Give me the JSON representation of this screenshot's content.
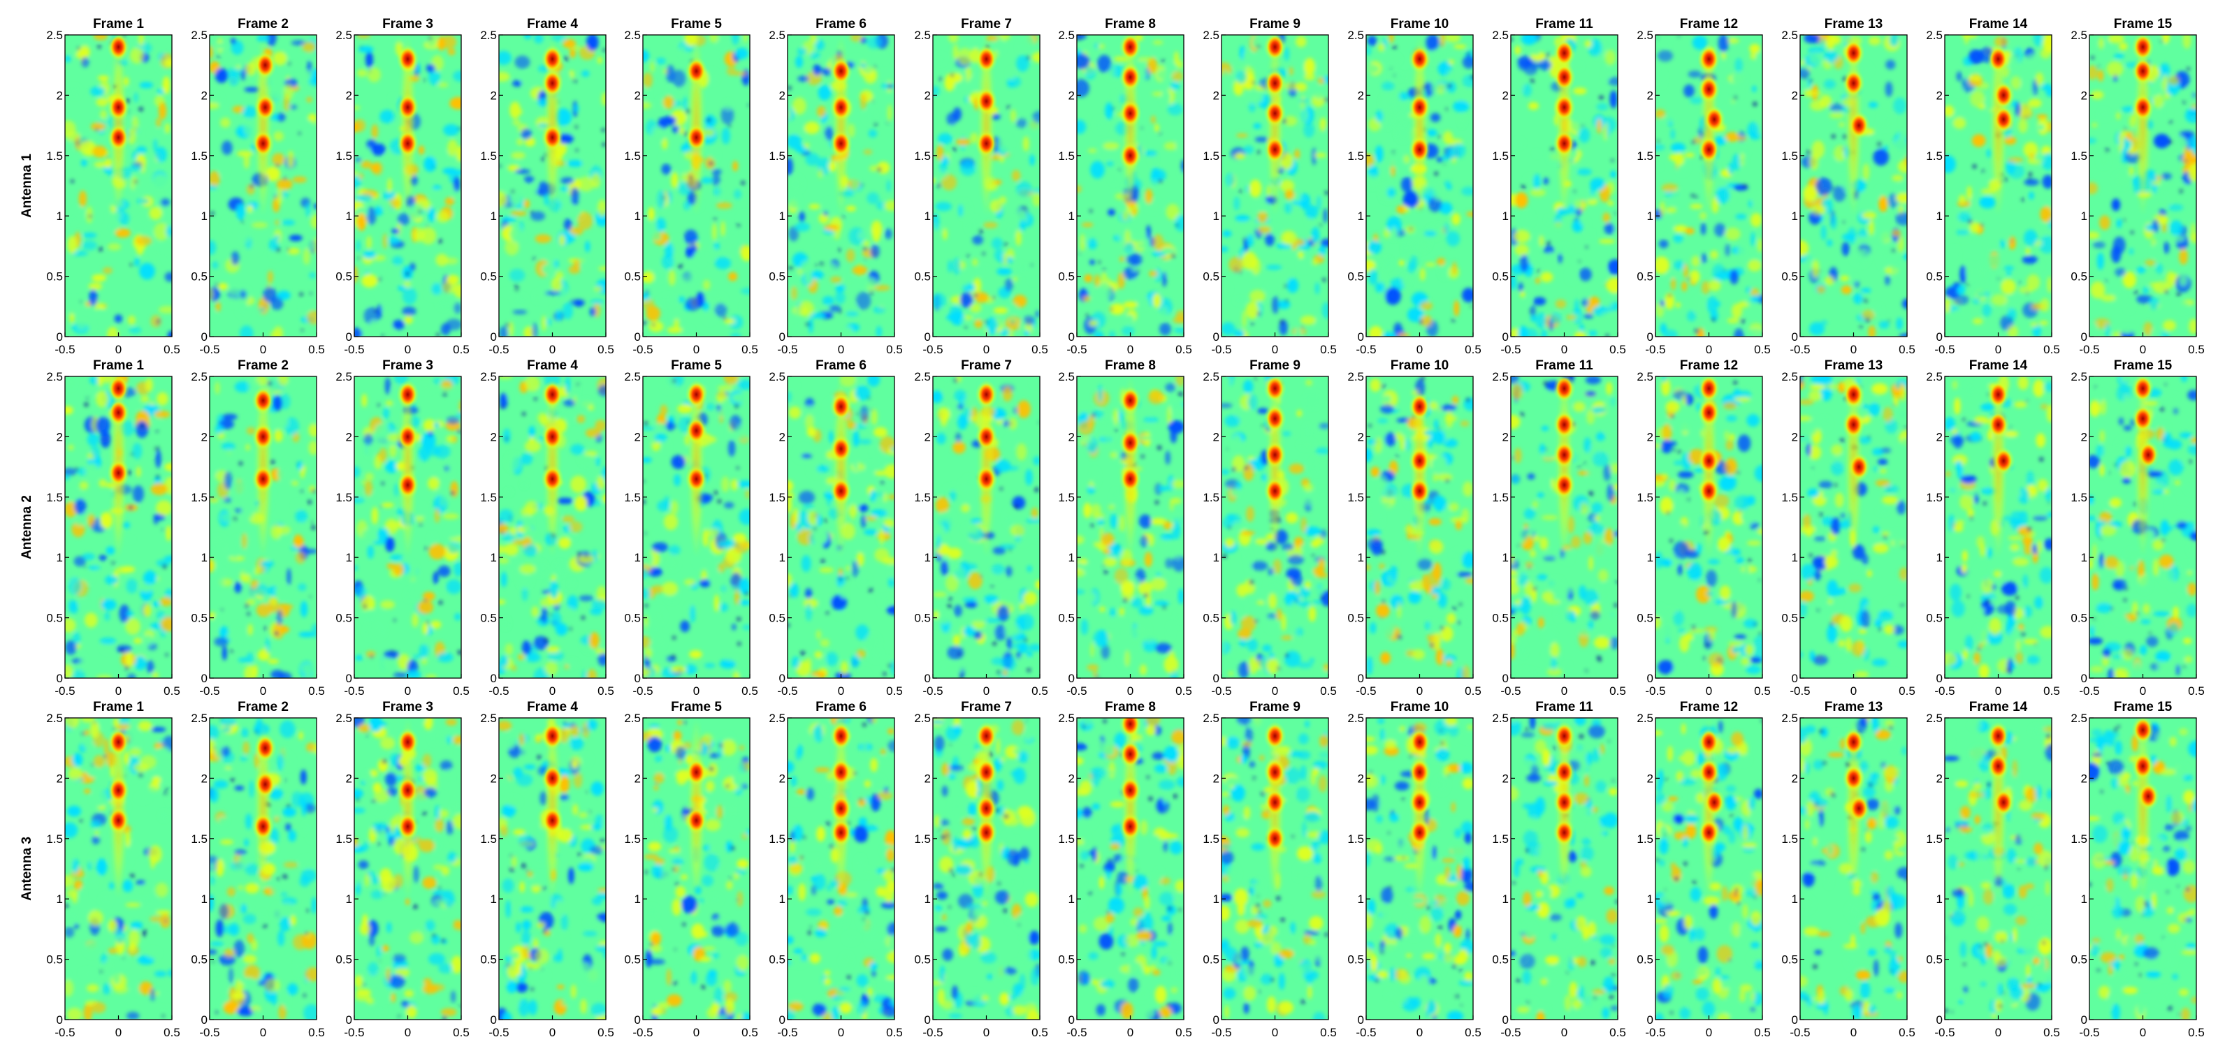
{
  "chart_data": {
    "type": "heatmap",
    "layout": "small-multiples grid, 3 rows x 15 columns",
    "colormap": "jet",
    "colormap_stops": [
      "#00008f",
      "#0050ff",
      "#00dfff",
      "#60ff9f",
      "#dfff20",
      "#ffc000",
      "#ff4000",
      "#9f0000"
    ],
    "background_level": "noisy cyan/green/yellow speckle",
    "frames": [
      "Frame 1",
      "Frame 2",
      "Frame 3",
      "Frame 4",
      "Frame 5",
      "Frame 6",
      "Frame 7",
      "Frame 8",
      "Frame 9",
      "Frame 10",
      "Frame 11",
      "Frame 12",
      "Frame 13",
      "Frame 14",
      "Frame 15"
    ],
    "antennas": [
      "Antenna 1",
      "Antenna 2",
      "Antenna 3"
    ],
    "x_ticks": [
      "-0.5",
      "0",
      "0.5"
    ],
    "y_ticks": [
      "0",
      "0.5",
      "1",
      "1.5",
      "2",
      "2.5"
    ],
    "xlim": [
      -0.5,
      0.5
    ],
    "ylim": [
      0,
      2.5
    ],
    "grid": false,
    "legend": false,
    "panels": [
      [
        {
          "frame": 1,
          "hot_spots": [
            {
              "x": 0,
              "y": 1.65
            },
            {
              "x": 0,
              "y": 1.9
            },
            {
              "x": 0,
              "y": 2.4
            }
          ]
        },
        {
          "frame": 2,
          "hot_spots": [
            {
              "x": 0,
              "y": 1.6
            },
            {
              "x": 0.02,
              "y": 1.9
            },
            {
              "x": 0.02,
              "y": 2.25
            }
          ]
        },
        {
          "frame": 3,
          "hot_spots": [
            {
              "x": 0,
              "y": 1.6
            },
            {
              "x": 0,
              "y": 1.9
            },
            {
              "x": 0,
              "y": 2.3
            }
          ]
        },
        {
          "frame": 4,
          "hot_spots": [
            {
              "x": 0,
              "y": 1.65
            },
            {
              "x": 0,
              "y": 2.1
            },
            {
              "x": 0,
              "y": 2.3
            }
          ]
        },
        {
          "frame": 5,
          "hot_spots": [
            {
              "x": 0,
              "y": 1.65
            },
            {
              "x": 0,
              "y": 2.2
            }
          ]
        },
        {
          "frame": 6,
          "hot_spots": [
            {
              "x": 0,
              "y": 1.6
            },
            {
              "x": 0,
              "y": 1.9
            },
            {
              "x": 0,
              "y": 2.2
            }
          ]
        },
        {
          "frame": 7,
          "hot_spots": [
            {
              "x": 0,
              "y": 1.6
            },
            {
              "x": 0,
              "y": 1.95
            },
            {
              "x": 0,
              "y": 2.3
            }
          ]
        },
        {
          "frame": 8,
          "hot_spots": [
            {
              "x": 0,
              "y": 1.5
            },
            {
              "x": 0,
              "y": 1.85
            },
            {
              "x": 0,
              "y": 2.15
            },
            {
              "x": 0,
              "y": 2.4
            }
          ]
        },
        {
          "frame": 9,
          "hot_spots": [
            {
              "x": 0,
              "y": 1.55
            },
            {
              "x": 0,
              "y": 1.85
            },
            {
              "x": 0,
              "y": 2.1
            },
            {
              "x": 0,
              "y": 2.4
            }
          ]
        },
        {
          "frame": 10,
          "hot_spots": [
            {
              "x": 0,
              "y": 1.55
            },
            {
              "x": 0,
              "y": 1.9
            },
            {
              "x": 0,
              "y": 2.3
            }
          ]
        },
        {
          "frame": 11,
          "hot_spots": [
            {
              "x": 0,
              "y": 1.6
            },
            {
              "x": 0,
              "y": 1.9
            },
            {
              "x": 0,
              "y": 2.15
            },
            {
              "x": 0,
              "y": 2.35
            }
          ]
        },
        {
          "frame": 12,
          "hot_spots": [
            {
              "x": 0,
              "y": 1.55
            },
            {
              "x": 0.05,
              "y": 1.8
            },
            {
              "x": 0,
              "y": 2.05
            },
            {
              "x": 0,
              "y": 2.3
            }
          ]
        },
        {
          "frame": 13,
          "hot_spots": [
            {
              "x": 0.05,
              "y": 1.75
            },
            {
              "x": 0,
              "y": 2.1
            },
            {
              "x": 0,
              "y": 2.35
            }
          ]
        },
        {
          "frame": 14,
          "hot_spots": [
            {
              "x": 0.05,
              "y": 1.8
            },
            {
              "x": 0.05,
              "y": 2.0
            },
            {
              "x": 0,
              "y": 2.3
            }
          ]
        },
        {
          "frame": 15,
          "hot_spots": [
            {
              "x": 0,
              "y": 1.9
            },
            {
              "x": 0,
              "y": 2.2
            },
            {
              "x": 0,
              "y": 2.4
            }
          ]
        }
      ],
      [
        {
          "frame": 1,
          "hot_spots": [
            {
              "x": 0,
              "y": 1.7
            },
            {
              "x": 0,
              "y": 2.2
            },
            {
              "x": 0,
              "y": 2.4
            }
          ]
        },
        {
          "frame": 2,
          "hot_spots": [
            {
              "x": 0,
              "y": 1.65
            },
            {
              "x": 0,
              "y": 2.0
            },
            {
              "x": 0,
              "y": 2.3
            }
          ]
        },
        {
          "frame": 3,
          "hot_spots": [
            {
              "x": 0,
              "y": 1.6
            },
            {
              "x": 0,
              "y": 2.0
            },
            {
              "x": 0,
              "y": 2.35
            }
          ]
        },
        {
          "frame": 4,
          "hot_spots": [
            {
              "x": 0,
              "y": 1.65
            },
            {
              "x": 0,
              "y": 2.0
            },
            {
              "x": 0,
              "y": 2.35
            }
          ]
        },
        {
          "frame": 5,
          "hot_spots": [
            {
              "x": 0,
              "y": 1.65
            },
            {
              "x": 0,
              "y": 2.05
            },
            {
              "x": 0,
              "y": 2.35
            }
          ]
        },
        {
          "frame": 6,
          "hot_spots": [
            {
              "x": 0,
              "y": 1.55
            },
            {
              "x": 0,
              "y": 1.9
            },
            {
              "x": 0,
              "y": 2.25
            }
          ]
        },
        {
          "frame": 7,
          "hot_spots": [
            {
              "x": 0,
              "y": 1.65
            },
            {
              "x": 0,
              "y": 2.0
            },
            {
              "x": 0,
              "y": 2.35
            }
          ]
        },
        {
          "frame": 8,
          "hot_spots": [
            {
              "x": 0,
              "y": 1.65
            },
            {
              "x": 0,
              "y": 1.95
            },
            {
              "x": 0,
              "y": 2.3
            }
          ]
        },
        {
          "frame": 9,
          "hot_spots": [
            {
              "x": 0,
              "y": 1.55
            },
            {
              "x": 0,
              "y": 1.85
            },
            {
              "x": 0,
              "y": 2.15
            },
            {
              "x": 0,
              "y": 2.4
            }
          ]
        },
        {
          "frame": 10,
          "hot_spots": [
            {
              "x": 0,
              "y": 1.55
            },
            {
              "x": 0,
              "y": 1.8
            },
            {
              "x": 0,
              "y": 2.25
            }
          ]
        },
        {
          "frame": 11,
          "hot_spots": [
            {
              "x": 0,
              "y": 1.6
            },
            {
              "x": 0,
              "y": 1.85
            },
            {
              "x": 0,
              "y": 2.1
            },
            {
              "x": 0,
              "y": 2.4
            }
          ]
        },
        {
          "frame": 12,
          "hot_spots": [
            {
              "x": 0,
              "y": 1.55
            },
            {
              "x": 0,
              "y": 1.8
            },
            {
              "x": 0,
              "y": 2.2
            },
            {
              "x": 0,
              "y": 2.4
            }
          ]
        },
        {
          "frame": 13,
          "hot_spots": [
            {
              "x": 0.05,
              "y": 1.75
            },
            {
              "x": 0,
              "y": 2.1
            },
            {
              "x": 0,
              "y": 2.35
            }
          ]
        },
        {
          "frame": 14,
          "hot_spots": [
            {
              "x": 0.05,
              "y": 1.8
            },
            {
              "x": 0,
              "y": 2.1
            },
            {
              "x": 0,
              "y": 2.35
            }
          ]
        },
        {
          "frame": 15,
          "hot_spots": [
            {
              "x": 0.05,
              "y": 1.85
            },
            {
              "x": 0,
              "y": 2.15
            },
            {
              "x": 0,
              "y": 2.4
            }
          ]
        }
      ],
      [
        {
          "frame": 1,
          "hot_spots": [
            {
              "x": 0,
              "y": 1.65
            },
            {
              "x": 0,
              "y": 1.9
            },
            {
              "x": 0,
              "y": 2.3
            }
          ]
        },
        {
          "frame": 2,
          "hot_spots": [
            {
              "x": 0,
              "y": 1.6
            },
            {
              "x": 0.02,
              "y": 1.95
            },
            {
              "x": 0.02,
              "y": 2.25
            }
          ]
        },
        {
          "frame": 3,
          "hot_spots": [
            {
              "x": 0,
              "y": 1.6
            },
            {
              "x": 0,
              "y": 1.9
            },
            {
              "x": 0,
              "y": 2.3
            }
          ]
        },
        {
          "frame": 4,
          "hot_spots": [
            {
              "x": 0,
              "y": 1.65
            },
            {
              "x": 0,
              "y": 2.0
            },
            {
              "x": 0,
              "y": 2.35
            }
          ]
        },
        {
          "frame": 5,
          "hot_spots": [
            {
              "x": 0,
              "y": 1.65
            },
            {
              "x": 0,
              "y": 2.05
            }
          ]
        },
        {
          "frame": 6,
          "hot_spots": [
            {
              "x": 0,
              "y": 1.55
            },
            {
              "x": 0,
              "y": 1.75
            },
            {
              "x": 0,
              "y": 2.05
            },
            {
              "x": 0,
              "y": 2.35
            }
          ]
        },
        {
          "frame": 7,
          "hot_spots": [
            {
              "x": 0,
              "y": 1.55
            },
            {
              "x": 0,
              "y": 1.75
            },
            {
              "x": 0,
              "y": 2.05
            },
            {
              "x": 0,
              "y": 2.35
            }
          ]
        },
        {
          "frame": 8,
          "hot_spots": [
            {
              "x": 0,
              "y": 1.6
            },
            {
              "x": 0,
              "y": 1.9
            },
            {
              "x": 0,
              "y": 2.2
            },
            {
              "x": 0,
              "y": 2.45
            }
          ]
        },
        {
          "frame": 9,
          "hot_spots": [
            {
              "x": 0,
              "y": 1.5
            },
            {
              "x": 0,
              "y": 1.8
            },
            {
              "x": 0,
              "y": 2.05
            },
            {
              "x": 0,
              "y": 2.35
            }
          ]
        },
        {
          "frame": 10,
          "hot_spots": [
            {
              "x": 0,
              "y": 1.55
            },
            {
              "x": 0,
              "y": 1.8
            },
            {
              "x": 0,
              "y": 2.05
            },
            {
              "x": 0,
              "y": 2.3
            }
          ]
        },
        {
          "frame": 11,
          "hot_spots": [
            {
              "x": 0,
              "y": 1.55
            },
            {
              "x": 0,
              "y": 1.8
            },
            {
              "x": 0,
              "y": 2.05
            },
            {
              "x": 0,
              "y": 2.35
            }
          ]
        },
        {
          "frame": 12,
          "hot_spots": [
            {
              "x": 0,
              "y": 1.55
            },
            {
              "x": 0.05,
              "y": 1.8
            },
            {
              "x": 0,
              "y": 2.05
            },
            {
              "x": 0,
              "y": 2.3
            }
          ]
        },
        {
          "frame": 13,
          "hot_spots": [
            {
              "x": 0.05,
              "y": 1.75
            },
            {
              "x": 0,
              "y": 2.0
            },
            {
              "x": 0,
              "y": 2.3
            }
          ]
        },
        {
          "frame": 14,
          "hot_spots": [
            {
              "x": 0.05,
              "y": 1.8
            },
            {
              "x": 0,
              "y": 2.1
            },
            {
              "x": 0,
              "y": 2.35
            }
          ]
        },
        {
          "frame": 15,
          "hot_spots": [
            {
              "x": 0.05,
              "y": 1.85
            },
            {
              "x": 0,
              "y": 2.1
            },
            {
              "x": 0,
              "y": 2.4
            }
          ]
        }
      ]
    ]
  }
}
